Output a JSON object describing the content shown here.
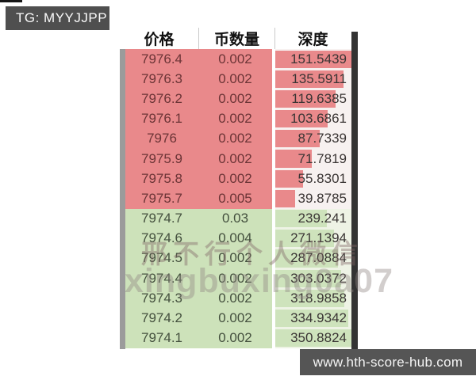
{
  "tg_badge": {
    "label": "TG: MYYJJPP",
    "bg": "#4f4f4f"
  },
  "site_badge": {
    "label": "www.hth-score-hub.com",
    "bg": "#555555"
  },
  "watermark": {
    "line1": "邢不行个人微信",
    "line2": "xingbuxing0a07"
  },
  "orderbook": {
    "columns": [
      {
        "key": "price",
        "label": "价格"
      },
      {
        "key": "amount",
        "label": "币数量"
      },
      {
        "key": "depth",
        "label": "深度"
      }
    ],
    "asks": [
      {
        "price": "7976.4",
        "amount": "0.002",
        "depth": "151.5439"
      },
      {
        "price": "7976.3",
        "amount": "0.002",
        "depth": "135.5911"
      },
      {
        "price": "7976.2",
        "amount": "0.002",
        "depth": "119.6385"
      },
      {
        "price": "7976.1",
        "amount": "0.002",
        "depth": "103.6861"
      },
      {
        "price": "7976",
        "amount": "0.002",
        "depth": "87.7339"
      },
      {
        "price": "7975.9",
        "amount": "0.002",
        "depth": "71.7819"
      },
      {
        "price": "7975.8",
        "amount": "0.002",
        "depth": "55.8301"
      },
      {
        "price": "7975.7",
        "amount": "0.005",
        "depth": "39.8785"
      }
    ],
    "bids": [
      {
        "price": "7974.7",
        "amount": "0.03",
        "depth": "239.241"
      },
      {
        "price": "7974.6",
        "amount": "0.004",
        "depth": "271.1394"
      },
      {
        "price": "7974.5",
        "amount": "0.002",
        "depth": "287.0884"
      },
      {
        "price": "7974.4",
        "amount": "0.002",
        "depth": "303.0372"
      },
      {
        "price": "7974.3",
        "amount": "0.002",
        "depth": "318.9858"
      },
      {
        "price": "7974.2",
        "amount": "0.002",
        "depth": "334.9342"
      },
      {
        "price": "7974.1",
        "amount": "0.002",
        "depth": "350.8824"
      }
    ],
    "colors": {
      "ask_row_bg": "#e9898b",
      "ask_text": "#6b3436",
      "ask_depth_cell_bg": "#f7f1f0",
      "bid_row_bg": "#cde2ba",
      "bid_bar": "#cee3bc",
      "bid_text": "#44503e",
      "bid_depth_cell_bg": "#eef3e5",
      "depth_text": "#3a3534"
    }
  }
}
